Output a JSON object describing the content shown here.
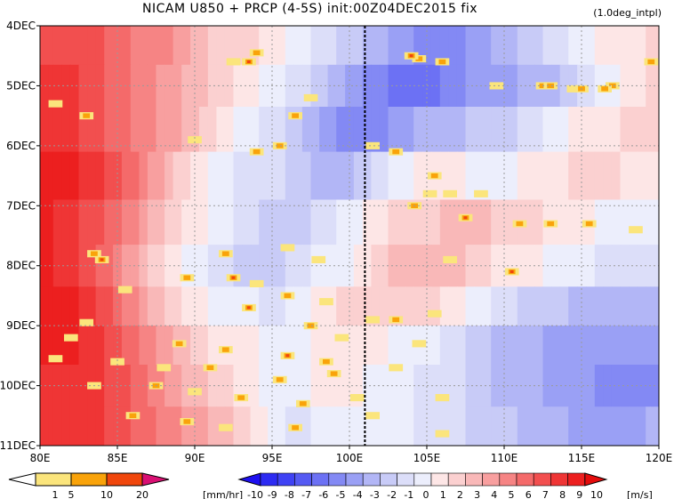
{
  "title": "NICAM   U850 + PRCP (4-5S) init:00Z04DEC2015 fix",
  "subtitle": "(1.0deg_intpl)",
  "chart_data": {
    "type": "heatmap",
    "x_labels": [
      "80E",
      "85E",
      "90E",
      "95E",
      "100E",
      "105E",
      "110E",
      "115E",
      "120E"
    ],
    "x_values": [
      80,
      85,
      90,
      95,
      100,
      105,
      110,
      115,
      120
    ],
    "xlim": [
      80,
      120
    ],
    "y_labels": [
      "4DEC",
      "5DEC",
      "6DEC",
      "7DEC",
      "8DEC",
      "9DEC",
      "10DEC",
      "11DEC"
    ],
    "y_values": [
      4,
      5,
      6,
      7,
      8,
      9,
      10,
      11
    ],
    "ylim": [
      4,
      11
    ],
    "grid": true,
    "marker_line_lon": 101,
    "u850_rows": [
      [
        4.3,
        [
          7,
          7,
          7,
          6,
          5,
          5,
          3,
          2,
          2,
          1,
          0,
          -1,
          -2,
          -3,
          -4,
          -5,
          -5,
          -4,
          -3,
          -2,
          -1,
          0,
          1,
          1,
          2
        ]
      ],
      [
        5.0,
        [
          8,
          8,
          7,
          6,
          5,
          4,
          3,
          2,
          1,
          0,
          -1,
          -2,
          -4,
          -5,
          -6,
          -6,
          -5,
          -4,
          -4,
          -3,
          -3,
          -1,
          0,
          1,
          2
        ]
      ],
      [
        5.7,
        [
          8,
          8,
          7,
          6,
          5,
          4,
          3,
          1,
          0,
          -1,
          -2,
          -4,
          -5,
          -5,
          -4,
          -3,
          -3,
          -2,
          -2,
          -1,
          0,
          1,
          1,
          2,
          2
        ]
      ],
      [
        6.5,
        [
          9,
          9,
          8,
          7,
          5,
          3,
          1,
          0,
          -1,
          -1,
          -2,
          -3,
          -3,
          -1,
          0,
          1,
          1,
          0,
          0,
          1,
          1,
          2,
          2,
          1,
          1
        ]
      ],
      [
        7.3,
        [
          9,
          8,
          7,
          6,
          4,
          2,
          1,
          0,
          -1,
          -2,
          -2,
          -1,
          0,
          1,
          2,
          2,
          3,
          3,
          2,
          2,
          1,
          1,
          0,
          0,
          0
        ]
      ],
      [
        8.0,
        [
          9,
          8,
          7,
          5,
          3,
          1,
          0,
          -1,
          -2,
          -2,
          -1,
          0,
          0,
          2,
          3,
          3,
          3,
          2,
          1,
          1,
          0,
          0,
          -1,
          -1,
          -1
        ]
      ],
      [
        8.7,
        [
          9,
          9,
          8,
          6,
          4,
          2,
          1,
          0,
          0,
          -1,
          0,
          1,
          2,
          2,
          2,
          2,
          1,
          0,
          -1,
          -2,
          -2,
          -3,
          -3,
          -3,
          -3
        ]
      ],
      [
        9.3,
        [
          9,
          9,
          8,
          7,
          5,
          4,
          2,
          1,
          1,
          0,
          0,
          1,
          1,
          1,
          0,
          0,
          -1,
          -2,
          -3,
          -3,
          -4,
          -4,
          -4,
          -4,
          -4
        ]
      ],
      [
        10.0,
        [
          8,
          8,
          8,
          7,
          6,
          4,
          3,
          2,
          1,
          0,
          0,
          1,
          1,
          0,
          0,
          -1,
          -1,
          -2,
          -3,
          -3,
          -4,
          -4,
          -5,
          -5,
          -5
        ]
      ],
      [
        10.7,
        [
          8,
          8,
          8,
          7,
          6,
          5,
          4,
          3,
          2,
          0,
          -1,
          0,
          0,
          0,
          0,
          -1,
          -1,
          -2,
          -2,
          -3,
          -3,
          -4,
          -4,
          -4,
          -3
        ]
      ]
    ],
    "u850_lons": [
      80,
      81.7,
      83.3,
      85,
      86.7,
      88.3,
      90,
      91.7,
      93.3,
      95,
      96.7,
      98.3,
      100,
      101.7,
      103.3,
      105,
      106.7,
      108.3,
      110,
      111.7,
      113.3,
      115,
      116.7,
      118.3,
      120
    ],
    "prcp_cells": [
      [
        93.5,
        4.6,
        3
      ],
      [
        94,
        4.45,
        2
      ],
      [
        92.5,
        4.6,
        1
      ],
      [
        104.5,
        4.55,
        2
      ],
      [
        104,
        4.5,
        3
      ],
      [
        106,
        4.6,
        2
      ],
      [
        112.5,
        5.0,
        2
      ],
      [
        114.5,
        5.05,
        1
      ],
      [
        117,
        5.0,
        2
      ],
      [
        119.5,
        4.6,
        2
      ],
      [
        81,
        5.3,
        1
      ],
      [
        83,
        5.5,
        2
      ],
      [
        96.5,
        5.5,
        2
      ],
      [
        97.5,
        5.2,
        1
      ],
      [
        101.5,
        6.0,
        1
      ],
      [
        109.5,
        5.0,
        1
      ],
      [
        113,
        5.0,
        2
      ],
      [
        115,
        5.05,
        2
      ],
      [
        116.5,
        5.05,
        2
      ],
      [
        94,
        6.1,
        2
      ],
      [
        95.5,
        6.0,
        2
      ],
      [
        90,
        5.9,
        1
      ],
      [
        103,
        6.1,
        2
      ],
      [
        105.5,
        6.5,
        2
      ],
      [
        106.5,
        6.8,
        1
      ],
      [
        108.5,
        6.8,
        1
      ],
      [
        104.2,
        7.0,
        2
      ],
      [
        105.2,
        6.8,
        1
      ],
      [
        107.5,
        7.2,
        3
      ],
      [
        111,
        7.3,
        2
      ],
      [
        113,
        7.3,
        2
      ],
      [
        115.5,
        7.3,
        2
      ],
      [
        118.5,
        7.4,
        1
      ],
      [
        83.5,
        7.8,
        2
      ],
      [
        84,
        7.9,
        3
      ],
      [
        92,
        7.8,
        2
      ],
      [
        96,
        7.7,
        1
      ],
      [
        98,
        7.9,
        1
      ],
      [
        106.5,
        7.9,
        1
      ],
      [
        110.5,
        8.1,
        3
      ],
      [
        85.5,
        8.4,
        1
      ],
      [
        89.5,
        8.2,
        2
      ],
      [
        92.5,
        8.2,
        3
      ],
      [
        94,
        8.3,
        1
      ],
      [
        96,
        8.5,
        2
      ],
      [
        98.5,
        8.6,
        1
      ],
      [
        101.5,
        8.9,
        1
      ],
      [
        83,
        8.95,
        1
      ],
      [
        93.5,
        8.7,
        3
      ],
      [
        97.5,
        9.0,
        2
      ],
      [
        103,
        8.9,
        2
      ],
      [
        105.5,
        8.8,
        1
      ],
      [
        82,
        9.2,
        1
      ],
      [
        89,
        9.3,
        2
      ],
      [
        92,
        9.4,
        2
      ],
      [
        96,
        9.5,
        3
      ],
      [
        98.5,
        9.6,
        2
      ],
      [
        99.5,
        9.2,
        1
      ],
      [
        104.5,
        9.3,
        1
      ],
      [
        81,
        9.55,
        1
      ],
      [
        85,
        9.6,
        1
      ],
      [
        88,
        9.7,
        1
      ],
      [
        91,
        9.7,
        2
      ],
      [
        95.5,
        9.9,
        2
      ],
      [
        99,
        9.8,
        2
      ],
      [
        103,
        9.7,
        1
      ],
      [
        83.5,
        10.0,
        1
      ],
      [
        87.5,
        10.0,
        2
      ],
      [
        90,
        10.1,
        1
      ],
      [
        93,
        10.2,
        2
      ],
      [
        97,
        10.3,
        2
      ],
      [
        100.5,
        10.2,
        1
      ],
      [
        106,
        10.2,
        1
      ],
      [
        86,
        10.5,
        2
      ],
      [
        89.5,
        10.6,
        2
      ],
      [
        92,
        10.7,
        1
      ],
      [
        96.5,
        10.7,
        2
      ],
      [
        101.5,
        10.5,
        1
      ],
      [
        106,
        10.8,
        1
      ]
    ],
    "precip_colorbar": {
      "ticks": [
        "1",
        "5",
        "10",
        "20"
      ],
      "unit": "[mm/hr]",
      "colors": [
        "#ffffff",
        "#fbe57c",
        "#f9a30a",
        "#f0460c",
        "#d91073"
      ]
    },
    "wind_colorbar": {
      "ticks": [
        "-10",
        "-9",
        "-8",
        "-7",
        "-6",
        "-5",
        "-4",
        "-3",
        "-2",
        "-1",
        "0",
        "1",
        "2",
        "3",
        "4",
        "5",
        "6",
        "7",
        "8",
        "9",
        "10"
      ],
      "unit": "[m/s]",
      "colors": [
        "#1e10f0",
        "#2d2bf2",
        "#3f42f4",
        "#555af3",
        "#6c71f4",
        "#8389f4",
        "#9aa0f5",
        "#b2b6f6",
        "#c8cbf7",
        "#dcdef9",
        "#eceefc",
        "#fde6e6",
        "#fbd0d0",
        "#f9b8b8",
        "#f89f9f",
        "#f68484",
        "#f46a6a",
        "#f24f4f",
        "#ef3535",
        "#ec1f1f",
        "#e40c0c"
      ]
    }
  }
}
